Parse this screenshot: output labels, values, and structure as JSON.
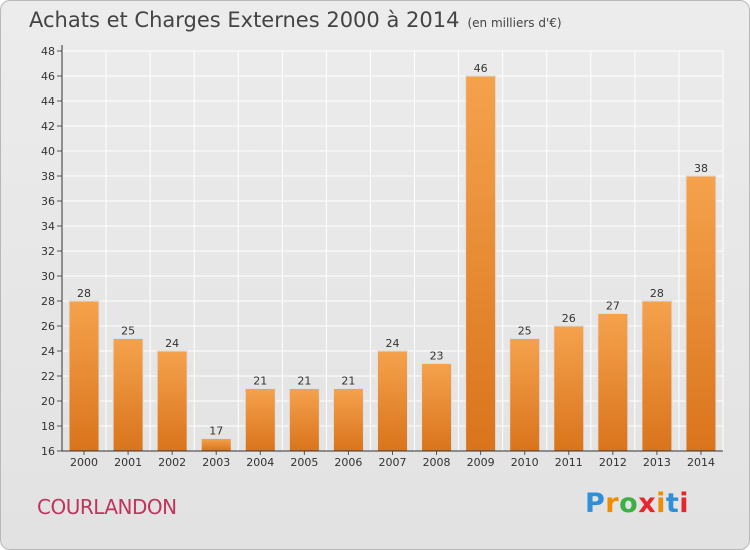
{
  "title": "Achats et Charges Externes 2000 à 2014",
  "subtitle": "(en milliers d'€)",
  "town": "COURLANDON",
  "logo": {
    "letters": [
      "P",
      "r",
      "o",
      "x",
      "i",
      "t",
      "i"
    ],
    "colors": [
      "#2f8fd8",
      "#f08c00",
      "#3cb043",
      "#e8262d",
      "#f08c00",
      "#2f8fd8",
      "#e8262d"
    ]
  },
  "chart_data": {
    "type": "bar",
    "categories": [
      "2000",
      "2001",
      "2002",
      "2003",
      "2004",
      "2005",
      "2006",
      "2007",
      "2008",
      "2009",
      "2010",
      "2011",
      "2012",
      "2013",
      "2014"
    ],
    "values": [
      28,
      25,
      24,
      17,
      21,
      21,
      21,
      24,
      23,
      46,
      25,
      26,
      27,
      28,
      38
    ],
    "ylim": [
      16,
      48
    ],
    "yticks": [
      16,
      18,
      20,
      22,
      24,
      26,
      28,
      30,
      32,
      34,
      36,
      38,
      40,
      42,
      44,
      46,
      48
    ],
    "grid": true,
    "bar_color_top": "#f5a24d",
    "bar_color_bottom": "#d9741c"
  }
}
